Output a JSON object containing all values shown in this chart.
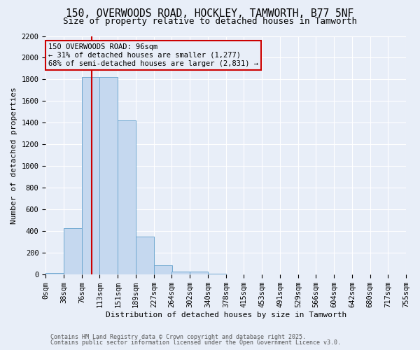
{
  "title1": "150, OVERWOODS ROAD, HOCKLEY, TAMWORTH, B77 5NF",
  "title2": "Size of property relative to detached houses in Tamworth",
  "xlabel": "Distribution of detached houses by size in Tamworth",
  "ylabel": "Number of detached properties",
  "bins": [
    0,
    38,
    76,
    113,
    151,
    189,
    227,
    264,
    302,
    340,
    378,
    415,
    453,
    491,
    529,
    566,
    604,
    642,
    680,
    717,
    755
  ],
  "bin_labels": [
    "0sqm",
    "38sqm",
    "76sqm",
    "113sqm",
    "151sqm",
    "189sqm",
    "227sqm",
    "264sqm",
    "302sqm",
    "340sqm",
    "378sqm",
    "415sqm",
    "453sqm",
    "491sqm",
    "529sqm",
    "566sqm",
    "604sqm",
    "642sqm",
    "680sqm",
    "717sqm",
    "755sqm"
  ],
  "heights": [
    15,
    430,
    1820,
    1820,
    1420,
    350,
    85,
    30,
    25,
    5,
    0,
    0,
    0,
    0,
    0,
    0,
    0,
    0,
    0,
    0
  ],
  "bar_color": "#c5d8ef",
  "bar_edge_color": "#6fa8d0",
  "red_line_x": 96,
  "ylim": [
    0,
    2200
  ],
  "yticks": [
    0,
    200,
    400,
    600,
    800,
    1000,
    1200,
    1400,
    1600,
    1800,
    2000,
    2200
  ],
  "annotation_title": "150 OVERWOODS ROAD: 96sqm",
  "annotation_line2": "← 31% of detached houses are smaller (1,277)",
  "annotation_line3": "68% of semi-detached houses are larger (2,831) →",
  "annotation_box_color": "#cc0000",
  "footnote1": "Contains HM Land Registry data © Crown copyright and database right 2025.",
  "footnote2": "Contains public sector information licensed under the Open Government Licence v3.0.",
  "bg_color": "#e8eef8",
  "grid_color": "#ffffff",
  "title_fontsize": 10.5,
  "subtitle_fontsize": 9,
  "label_fontsize": 8,
  "tick_fontsize": 7.5,
  "annot_fontsize": 7.5,
  "footnote_fontsize": 6
}
